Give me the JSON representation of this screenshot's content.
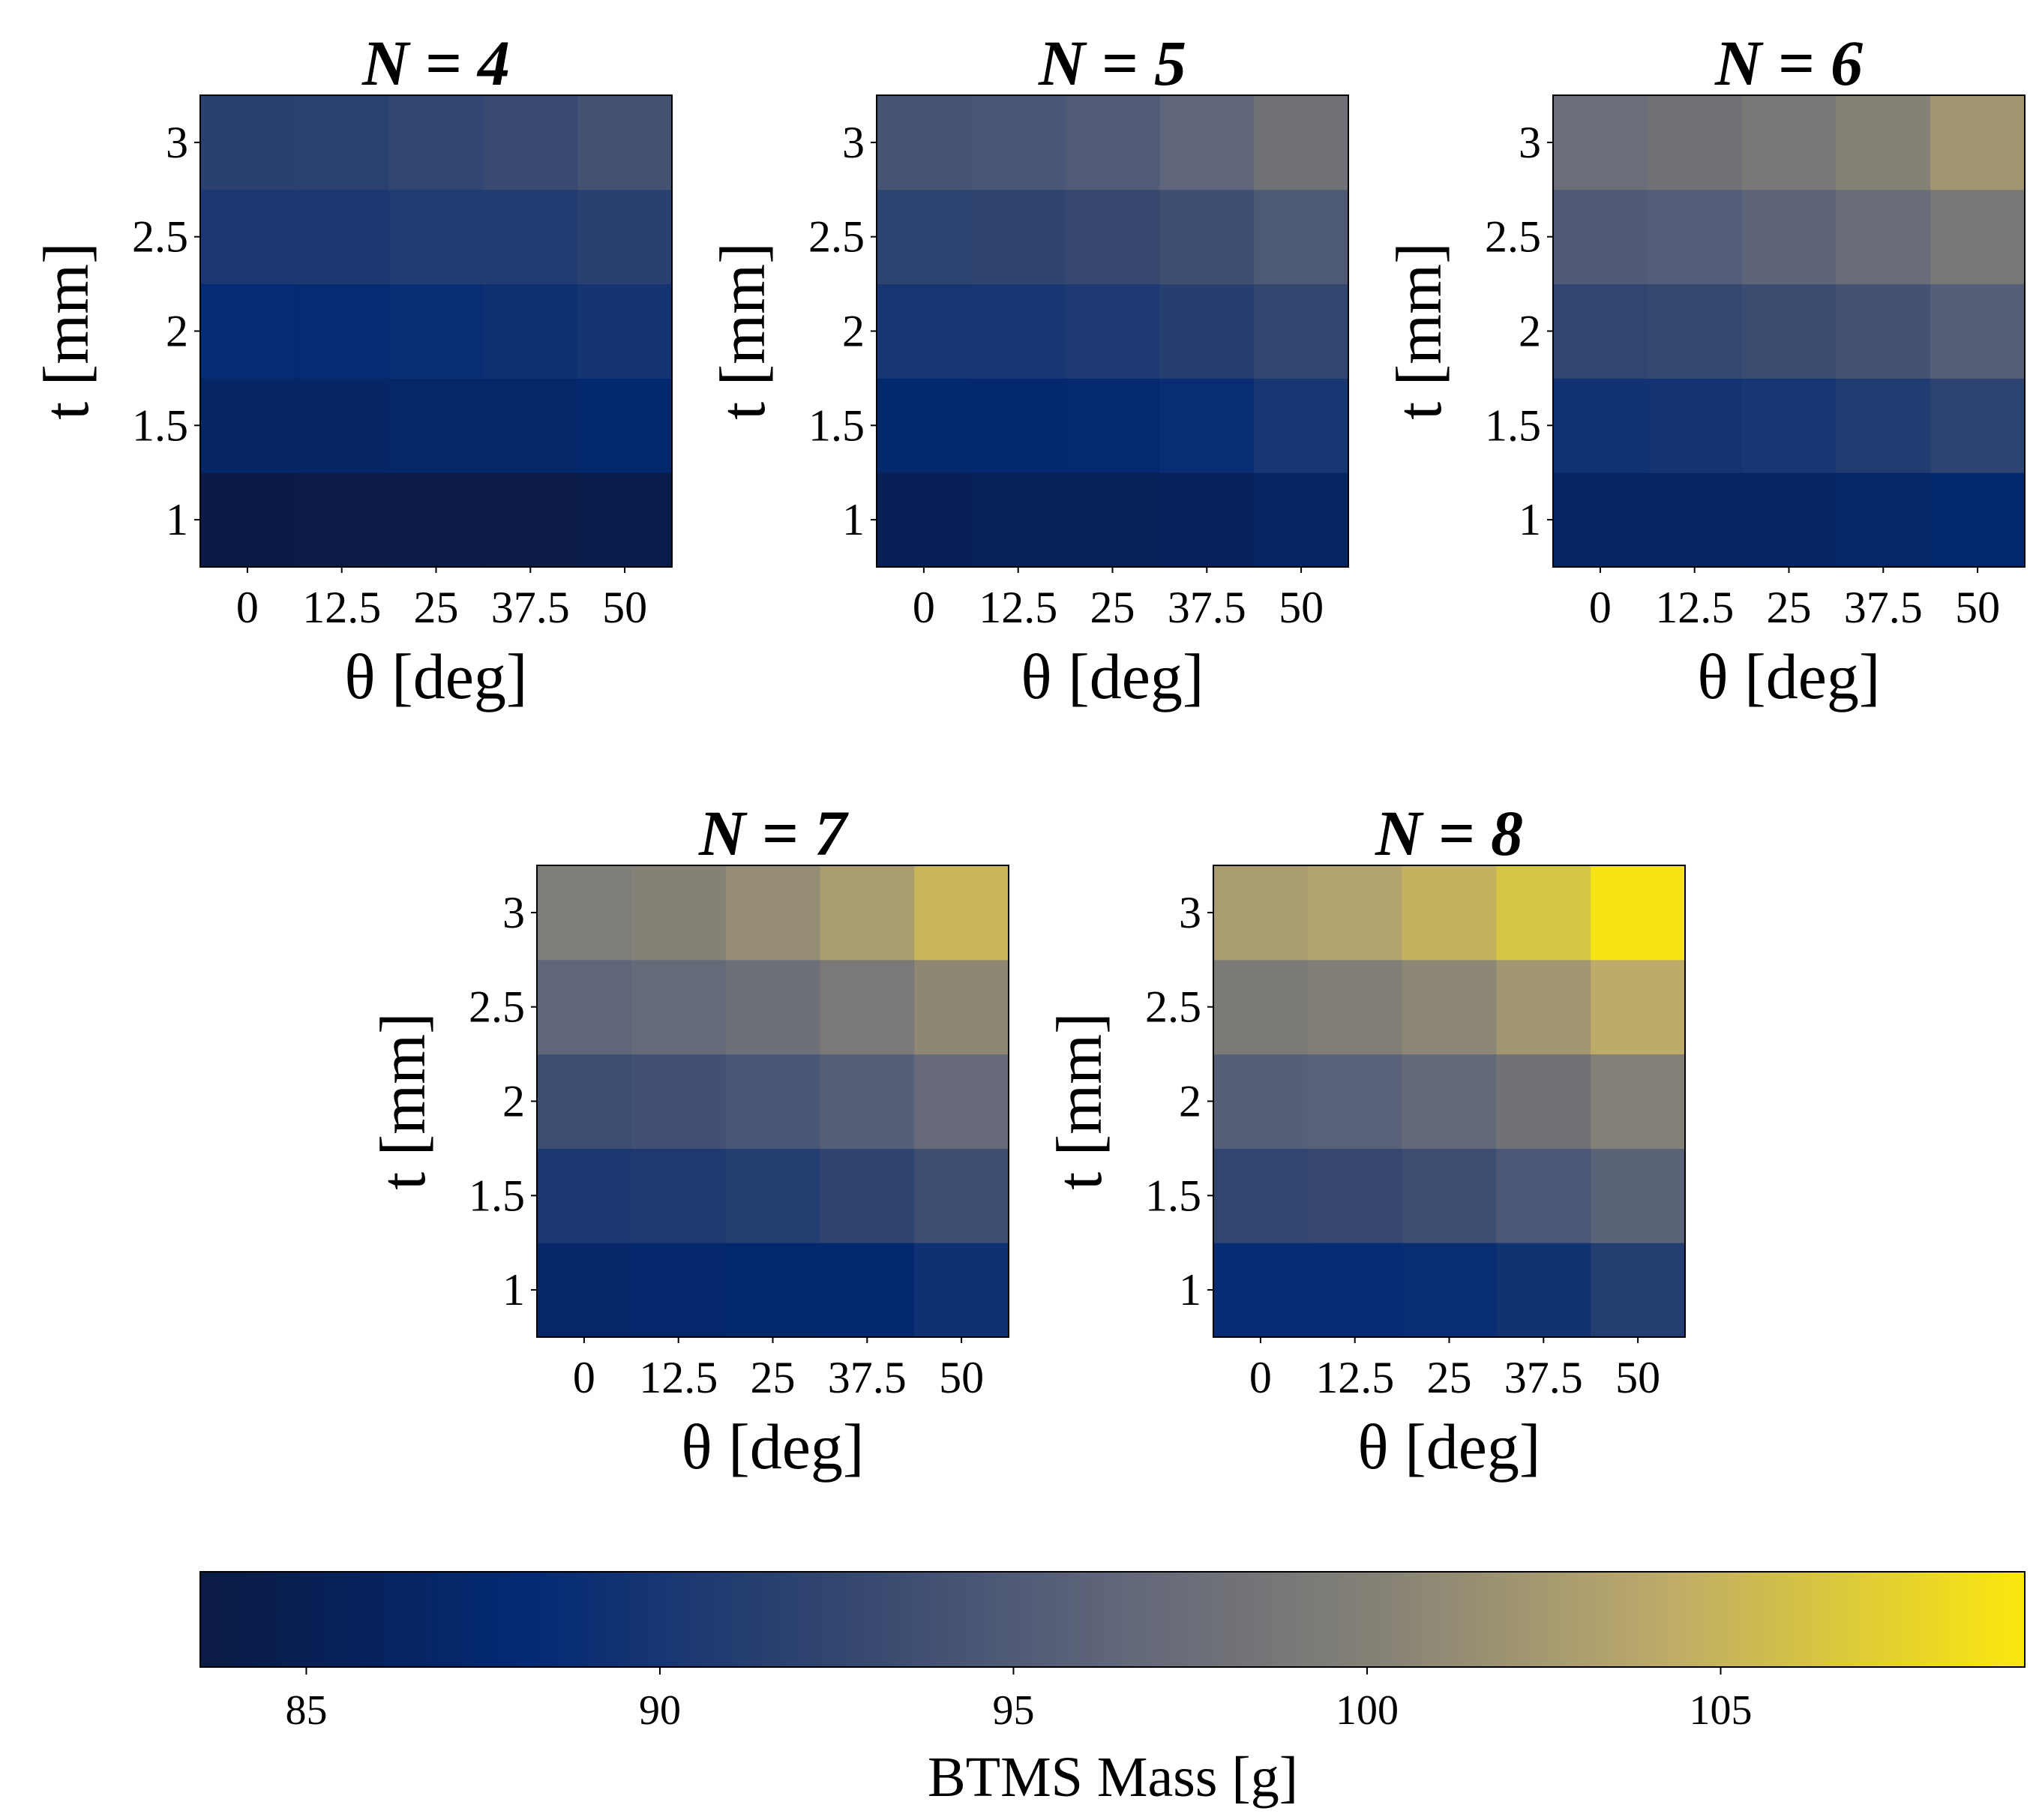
{
  "colormap": {
    "name": "cividis-like",
    "stops": [
      {
        "at": 0.0,
        "color": "#0b1b44"
      },
      {
        "at": 0.18,
        "color": "#032a74"
      },
      {
        "at": 0.35,
        "color": "#33466f"
      },
      {
        "at": 0.5,
        "color": "#60667a"
      },
      {
        "at": 0.65,
        "color": "#868276"
      },
      {
        "at": 0.8,
        "color": "#bcaa6a"
      },
      {
        "at": 1.0,
        "color": "#fbe70d"
      }
    ]
  },
  "chart_data": [
    {
      "type": "heatmap",
      "title": "N = 4",
      "xlabel": "θ [deg]",
      "ylabel": "t [mm]",
      "x": [
        "0",
        "12.5",
        "25",
        "37.5",
        "50"
      ],
      "y": [
        "1",
        "1.5",
        "2",
        "2.5",
        "3"
      ],
      "values": [
        [
          83.6,
          83.7,
          83.8,
          83.7,
          84.1
        ],
        [
          86.6,
          86.7,
          86.9,
          87.0,
          87.4
        ],
        [
          88.3,
          88.3,
          88.8,
          89.1,
          89.7
        ],
        [
          90.2,
          90.4,
          90.8,
          91.0,
          91.6
        ],
        [
          91.6,
          91.8,
          92.3,
          93.0,
          94.1
        ]
      ]
    },
    {
      "type": "heatmap",
      "title": "N = 5",
      "xlabel": "θ [deg]",
      "ylabel": "t [mm]",
      "x": [
        "0",
        "12.5",
        "25",
        "37.5",
        "50"
      ],
      "y": [
        "1",
        "1.5",
        "2",
        "2.5",
        "3"
      ],
      "values": [
        [
          85.2,
          85.3,
          85.4,
          85.6,
          86.6
        ],
        [
          87.4,
          87.5,
          87.7,
          88.6,
          90.0
        ],
        [
          89.9,
          90.1,
          90.5,
          91.3,
          92.5
        ],
        [
          92.0,
          92.2,
          92.8,
          93.6,
          94.8
        ],
        [
          94.2,
          94.5,
          95.1,
          96.3,
          98.0
        ]
      ]
    },
    {
      "type": "heatmap",
      "title": "N = 6",
      "xlabel": "θ [deg]",
      "ylabel": "t [mm]",
      "x": [
        "0",
        "12.5",
        "25",
        "37.5",
        "50"
      ],
      "y": [
        "1",
        "1.5",
        "2",
        "2.5",
        "3"
      ],
      "values": [
        [
          86.3,
          86.4,
          86.6,
          86.9,
          87.6
        ],
        [
          89.4,
          89.6,
          90.1,
          90.9,
          92.0
        ],
        [
          92.3,
          92.6,
          93.2,
          94.1,
          95.5
        ],
        [
          95.0,
          95.3,
          96.2,
          97.3,
          98.7
        ],
        [
          97.5,
          98.0,
          98.9,
          100.2,
          102.3
        ]
      ]
    },
    {
      "type": "heatmap",
      "title": "N = 7",
      "xlabel": "θ [deg]",
      "ylabel": "t [mm]",
      "x": [
        "0",
        "12.5",
        "25",
        "37.5",
        "50"
      ],
      "y": [
        "1",
        "1.5",
        "2",
        "2.5",
        "3"
      ],
      "values": [
        [
          87.2,
          87.3,
          87.4,
          87.6,
          89.2
        ],
        [
          90.4,
          90.7,
          91.2,
          92.2,
          93.6
        ],
        [
          93.4,
          93.8,
          94.5,
          95.6,
          97.0
        ],
        [
          96.4,
          96.9,
          97.7,
          99.0,
          100.8
        ],
        [
          99.6,
          100.2,
          101.3,
          102.8,
          105.1
        ]
      ]
    },
    {
      "type": "heatmap",
      "title": "N = 8",
      "xlabel": "θ [deg]",
      "ylabel": "t [mm]",
      "x": [
        "0",
        "12.5",
        "25",
        "37.5",
        "50"
      ],
      "y": [
        "1",
        "1.5",
        "2",
        "2.5",
        "3"
      ],
      "values": [
        [
          88.4,
          88.5,
          88.8,
          89.5,
          91.1
        ],
        [
          92.3,
          92.8,
          93.5,
          94.6,
          96.0
        ],
        [
          95.5,
          95.9,
          96.8,
          98.1,
          99.9
        ],
        [
          99.1,
          99.7,
          100.7,
          102.2,
          104.2
        ],
        [
          102.8,
          103.5,
          104.7,
          106.3,
          109.0
        ]
      ]
    }
  ],
  "colorbar": {
    "label": "BTMS Mass [g]",
    "vmin": 83.5,
    "vmax": 109.3,
    "ticks": [
      85,
      90,
      95,
      100,
      105
    ]
  }
}
